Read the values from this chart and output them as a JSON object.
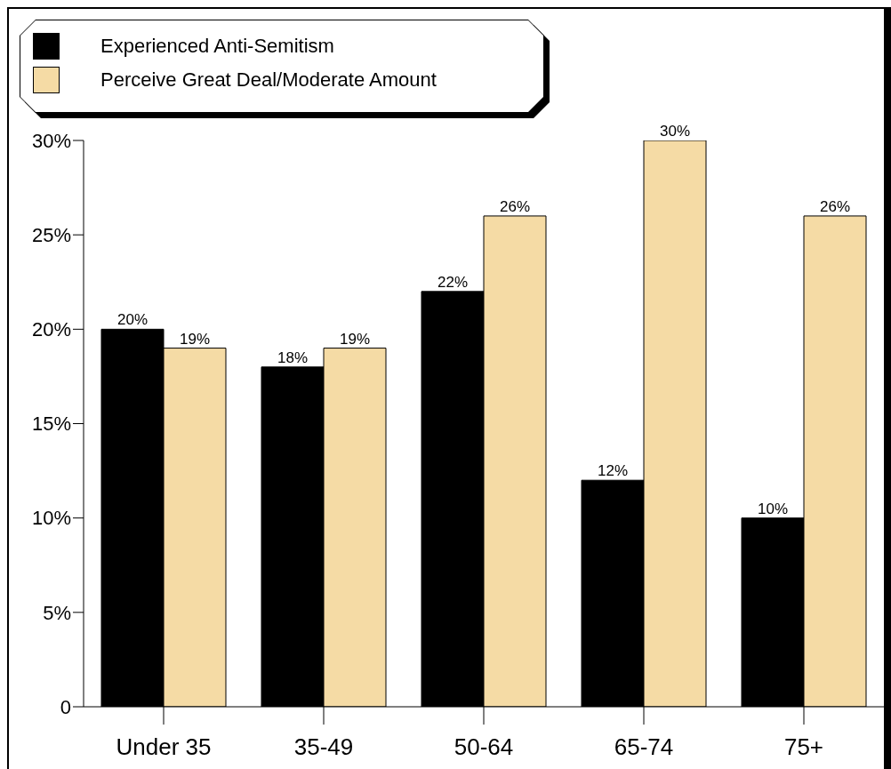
{
  "chart_data": {
    "type": "bar",
    "categories": [
      "Under 35",
      "35-49",
      "50-64",
      "65-74",
      "75+"
    ],
    "series": [
      {
        "name": "Experienced Anti-Semitism",
        "color": "#000000",
        "values": [
          20,
          18,
          22,
          12,
          10
        ],
        "value_labels": [
          "20%",
          "18%",
          "22%",
          "12%",
          "10%"
        ]
      },
      {
        "name": "Perceive Great Deal/Moderate Amount",
        "color": "#f5dba5",
        "values": [
          19,
          19,
          26,
          30,
          26
        ],
        "value_labels": [
          "19%",
          "19%",
          "26%",
          "30%",
          "26%"
        ]
      }
    ],
    "ylim": [
      0,
      30
    ],
    "yticks": [
      0,
      {
        "value": 5,
        "label": "5%"
      },
      {
        "value": 10,
        "label": "10%"
      },
      {
        "value": 15,
        "label": "15%"
      },
      {
        "value": 20,
        "label": "20%"
      },
      {
        "value": 25,
        "label": "25%"
      },
      {
        "value": 30,
        "label": "30%"
      }
    ],
    "grid": false,
    "legend": "top left"
  }
}
